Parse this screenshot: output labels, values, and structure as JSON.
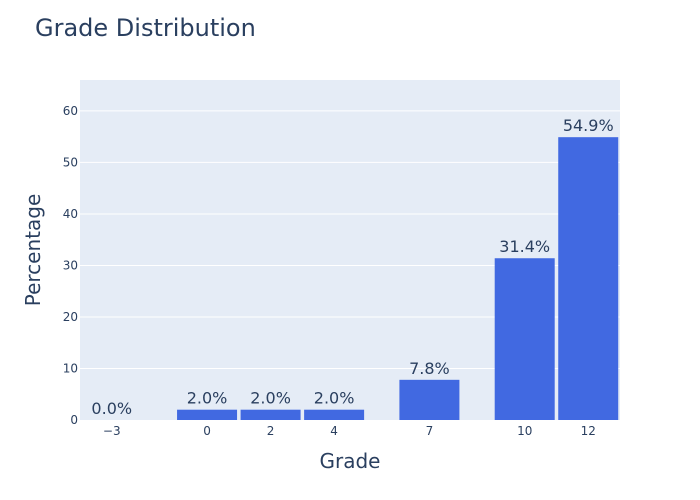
{
  "chart_data": {
    "type": "bar",
    "title": "Grade Distribution",
    "xlabel": "Grade",
    "ylabel": "Percentage",
    "x": [
      -3,
      0,
      2,
      4,
      7,
      10,
      12
    ],
    "x_tick_labels": [
      "−3",
      "0",
      "2",
      "4",
      "7",
      "10",
      "12"
    ],
    "values": [
      0.0,
      2.0,
      2.0,
      2.0,
      7.8,
      31.4,
      54.9
    ],
    "data_labels": [
      "0.0%",
      "2.0%",
      "2.0%",
      "2.0%",
      "7.8%",
      "31.4%",
      "54.9%"
    ],
    "ylim": [
      0,
      66
    ],
    "xlim": [
      -4,
      13
    ],
    "y_ticks": [
      0,
      10,
      20,
      30,
      40,
      50,
      60
    ],
    "grid": true,
    "bar_color": "#4169e1",
    "plot_bg": "#e5ecf6",
    "text_color": "#2a3f5f"
  }
}
